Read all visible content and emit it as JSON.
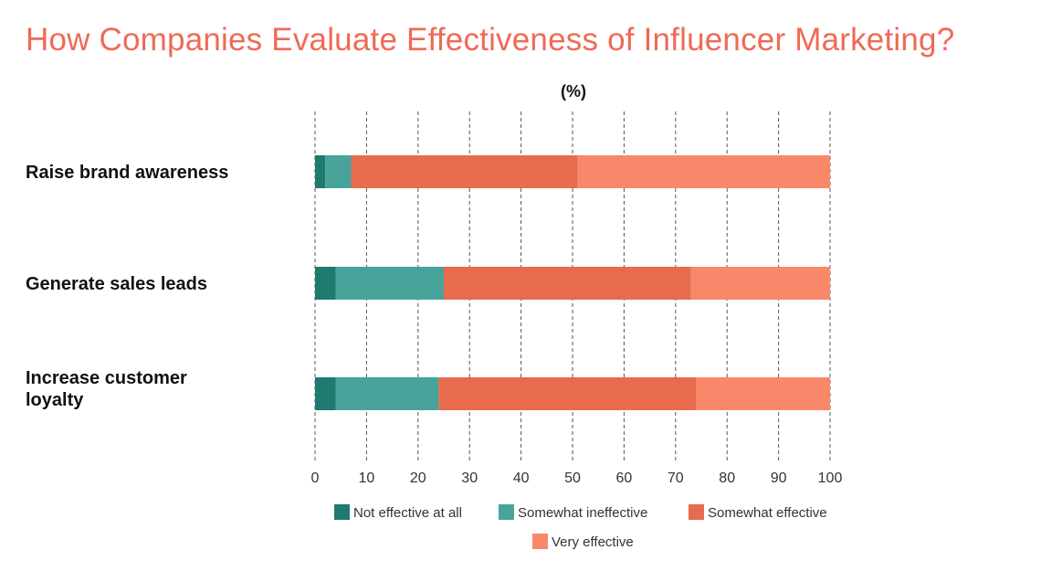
{
  "colors": {
    "title": "#ef6a55",
    "not_effective": "#1f7a70",
    "somewhat_ineffective": "#48a39a",
    "somewhat_effective": "#e86b4e",
    "very_effective": "#f9886a",
    "grid": "#555555"
  },
  "chart_data": {
    "type": "bar",
    "orientation": "horizontal",
    "stacked": true,
    "title": "How Companies Evaluate Effectiveness of Influencer Marketing?",
    "unit_label": "(%)",
    "categories": [
      "Raise brand awareness",
      "Generate sales leads",
      "Increase customer loyalty"
    ],
    "category_lines": [
      [
        "Raise brand awareness"
      ],
      [
        "Generate sales leads"
      ],
      [
        "Increase customer",
        "loyalty"
      ]
    ],
    "series": [
      {
        "name": "Not effective at all",
        "color_key": "not_effective",
        "values": [
          2,
          4,
          4
        ]
      },
      {
        "name": "Somewhat ineffective",
        "color_key": "somewhat_ineffective",
        "values": [
          5,
          21,
          20
        ]
      },
      {
        "name": "Somewhat effective",
        "color_key": "somewhat_effective",
        "values": [
          44,
          48,
          50
        ]
      },
      {
        "name": "Very effective",
        "color_key": "very_effective",
        "values": [
          49,
          27,
          26
        ]
      }
    ],
    "xlim": [
      0,
      100
    ],
    "x_ticks": [
      0,
      10,
      20,
      30,
      40,
      50,
      60,
      70,
      80,
      90,
      100
    ],
    "grid": "vertical dashed",
    "legend_position": "bottom"
  }
}
